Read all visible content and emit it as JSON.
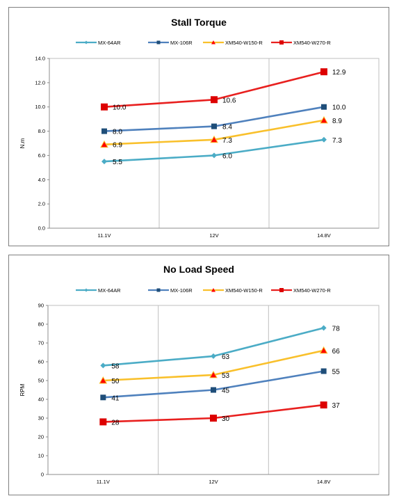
{
  "chart_data": [
    {
      "type": "line",
      "title": "Stall Torque",
      "ylabel": "N.m",
      "xlabel": "",
      "categories": [
        "11.1V",
        "12V",
        "14.8V"
      ],
      "ylim": [
        0,
        14
      ],
      "yticks": [
        "0.0",
        "2.0",
        "4.0",
        "6.0",
        "8.0",
        "10.0",
        "12.0",
        "14.0"
      ],
      "grid": "vertical",
      "legend": "top",
      "series": [
        {
          "name": "MX-64AR",
          "values": [
            5.5,
            6.0,
            7.3
          ],
          "labels": [
            "5.5",
            "6.0",
            "7.3"
          ],
          "color": "#4bacc6",
          "marker": "diamond"
        },
        {
          "name": "MX-106R",
          "values": [
            8.0,
            8.4,
            10.0
          ],
          "labels": [
            "8.0",
            "8.4",
            "10.0"
          ],
          "color": "#4f81bd",
          "marker": "square"
        },
        {
          "name": "XM540-W150-R",
          "values": [
            6.9,
            7.3,
            8.9
          ],
          "labels": [
            "6.9",
            "7.3",
            "8.9"
          ],
          "color": "#f9c02b",
          "marker": "triangle"
        },
        {
          "name": "XM540-W270-R",
          "values": [
            10.0,
            10.6,
            12.9
          ],
          "labels": [
            "10.0",
            "10.6",
            "12.9"
          ],
          "color": "#e8201f",
          "marker": "bigsquare"
        }
      ]
    },
    {
      "type": "line",
      "title": "No Load Speed",
      "ylabel": "RPM",
      "xlabel": "",
      "categories": [
        "11.1V",
        "12V",
        "14.8V"
      ],
      "ylim": [
        0,
        90
      ],
      "yticks": [
        "0",
        "10",
        "20",
        "30",
        "40",
        "50",
        "60",
        "70",
        "80",
        "90"
      ],
      "grid": "vertical",
      "legend": "top",
      "series": [
        {
          "name": "MX-64AR",
          "values": [
            58,
            63,
            78
          ],
          "labels": [
            "58",
            "63",
            "78"
          ],
          "color": "#4bacc6",
          "marker": "diamond"
        },
        {
          "name": "MX-106R",
          "values": [
            41,
            45,
            55
          ],
          "labels": [
            "41",
            "45",
            "55"
          ],
          "color": "#4f81bd",
          "marker": "square"
        },
        {
          "name": "XM540-W150-R",
          "values": [
            50,
            53,
            66
          ],
          "labels": [
            "50",
            "53",
            "66"
          ],
          "color": "#f9c02b",
          "marker": "triangle"
        },
        {
          "name": "XM540-W270-R",
          "values": [
            28,
            30,
            37
          ],
          "labels": [
            "28",
            "30",
            "37"
          ],
          "color": "#e8201f",
          "marker": "bigsquare"
        }
      ]
    }
  ]
}
